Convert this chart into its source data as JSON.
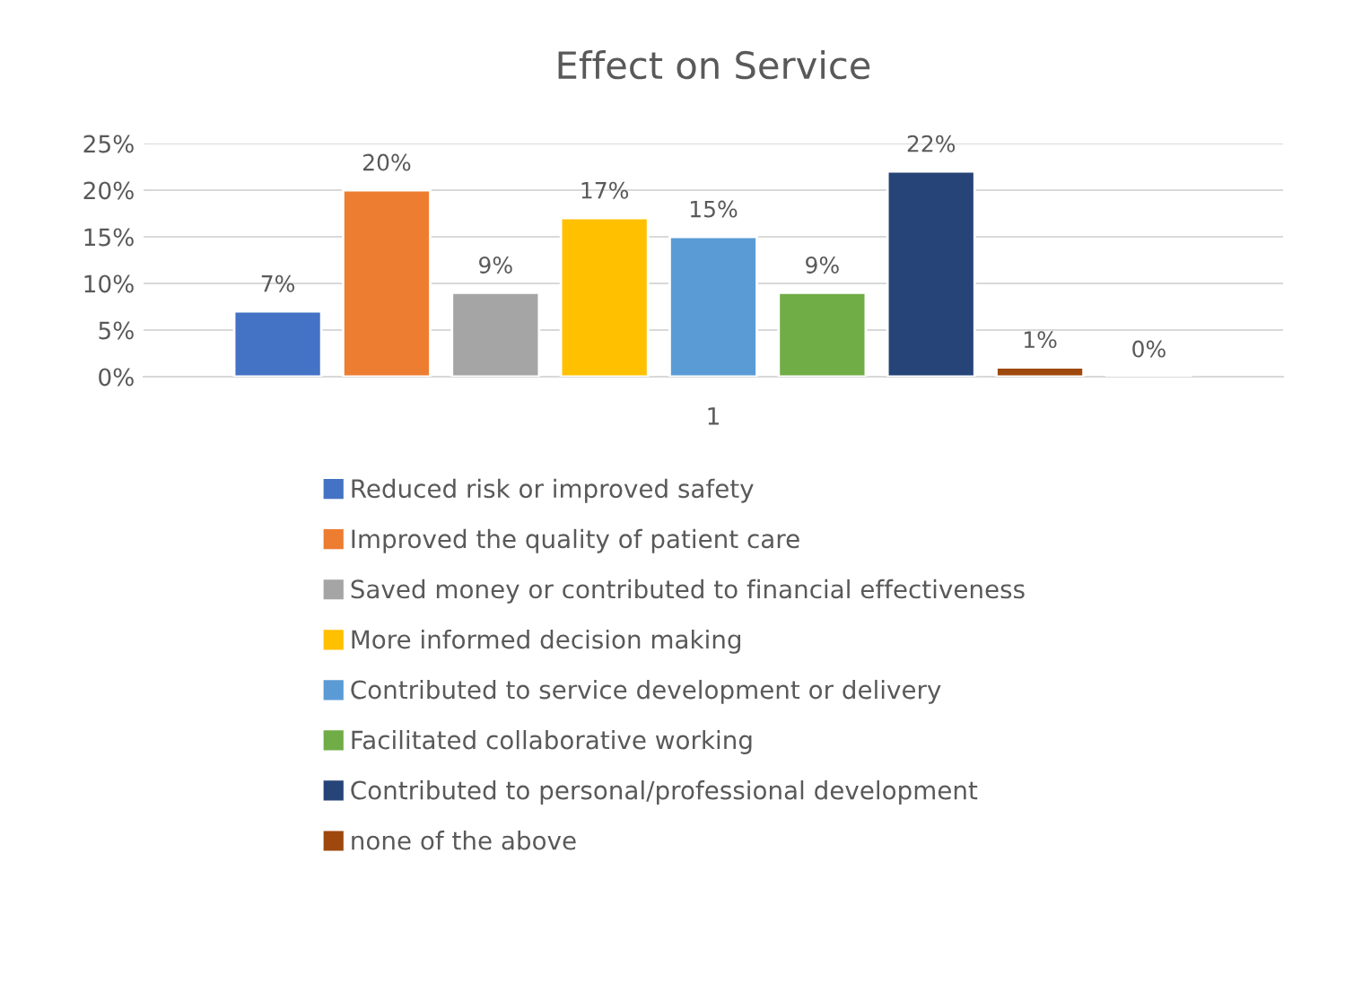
{
  "chart_data": {
    "type": "bar",
    "title": "Effect on Service",
    "categories": [
      "1"
    ],
    "series": [
      {
        "name": "Reduced risk or improved safety",
        "color": "#4472c4",
        "values": [
          7
        ],
        "value_labels": [
          "7%"
        ]
      },
      {
        "name": "Improved the quality of patient care",
        "color": "#ed7d31",
        "values": [
          20
        ],
        "value_labels": [
          "20%"
        ]
      },
      {
        "name": "Saved money or contributed to financial effectiveness",
        "color": "#a5a5a5",
        "values": [
          9
        ],
        "value_labels": [
          "9%"
        ]
      },
      {
        "name": "More informed decision making",
        "color": "#ffc000",
        "values": [
          17
        ],
        "value_labels": [
          "17%"
        ]
      },
      {
        "name": "Contributed to service development or delivery",
        "color": "#5b9bd5",
        "values": [
          15
        ],
        "value_labels": [
          "15%"
        ]
      },
      {
        "name": "Facilitated collaborative working",
        "color": "#70ad47",
        "values": [
          9
        ],
        "value_labels": [
          "9%"
        ]
      },
      {
        "name": "Contributed to personal/professional development",
        "color": "#264478",
        "values": [
          22
        ],
        "value_labels": [
          "22%"
        ]
      },
      {
        "name": "none of the above",
        "color": "#9e480e",
        "values": [
          1
        ],
        "value_labels": [
          "1%"
        ]
      },
      {
        "values": [
          0
        ],
        "value_labels": [
          "0%"
        ]
      }
    ],
    "ylim": [
      0,
      25
    ],
    "yticks": [
      {
        "value": 0,
        "label": "0%"
      },
      {
        "value": 5,
        "label": "5%"
      },
      {
        "value": 10,
        "label": "10%"
      },
      {
        "value": 15,
        "label": "15%"
      },
      {
        "value": 20,
        "label": "20%"
      },
      {
        "value": 25,
        "label": "25%"
      }
    ],
    "grid": "y",
    "legend": "bottom"
  }
}
